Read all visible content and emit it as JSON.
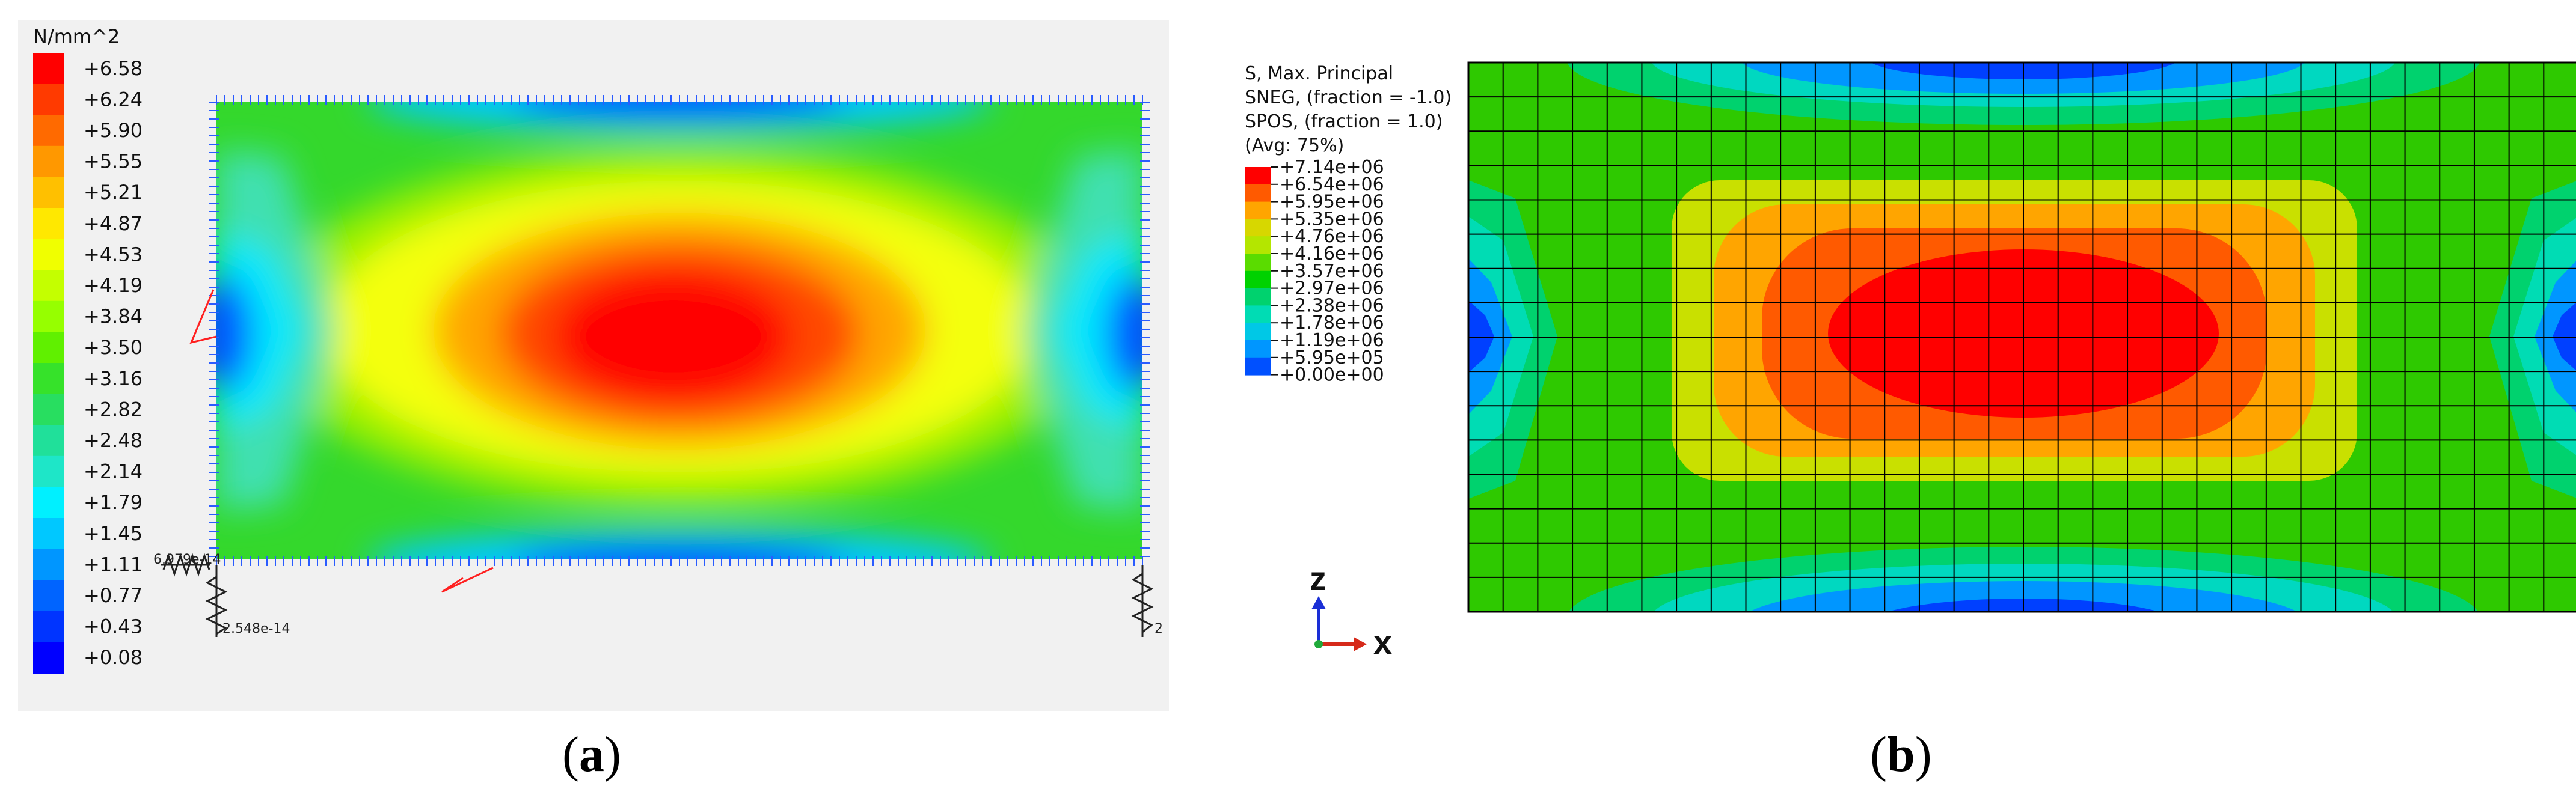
{
  "panel_a": {
    "unit_label": "N/mm^2",
    "scale_values": [
      "+6.58",
      "+6.24",
      "+5.90",
      "+5.55",
      "+5.21",
      "+4.87",
      "+4.53",
      "+4.19",
      "+3.84",
      "+3.50",
      "+3.16",
      "+2.82",
      "+2.48",
      "+2.14",
      "+1.79",
      "+1.45",
      "+1.11",
      "+0.77",
      "+0.43",
      "+0.08"
    ],
    "scale_colors": [
      "#ff0000",
      "#ff3a00",
      "#ff6a00",
      "#ff9800",
      "#ffc000",
      "#ffe800",
      "#f0ff00",
      "#c4ff00",
      "#96ff00",
      "#60f000",
      "#36e22a",
      "#28de60",
      "#20e09a",
      "#1ee6c8",
      "#00f0ff",
      "#00c8ff",
      "#0096ff",
      "#0064ff",
      "#0034ff",
      "#0000ff"
    ],
    "node_label_left": "6.979e-14",
    "node_label_bottom": "2.548e-14",
    "node_label_right": "2"
  },
  "panel_b": {
    "legend_title": [
      "S, Max. Principal",
      "SNEG, (fraction = -1.0)",
      "SPOS, (fraction = 1.0)",
      "(Avg: 75%)"
    ],
    "scale_values": [
      "+7.14e+06",
      "+6.54e+06",
      "+5.95e+06",
      "+5.35e+06",
      "+4.76e+06",
      "+4.16e+06",
      "+3.57e+06",
      "+2.97e+06",
      "+2.38e+06",
      "+1.78e+06",
      "+1.19e+06",
      "+5.95e+05",
      "+0.00e+00"
    ],
    "scale_colors": [
      "#ff0000",
      "#ff5a00",
      "#ffa500",
      "#d7d700",
      "#b4e600",
      "#5adc00",
      "#00d200",
      "#00d26e",
      "#00dcb4",
      "#00c8e6",
      "#0096ff",
      "#0050ff",
      "#0000ff"
    ],
    "axis_z": "z",
    "axis_x": "x"
  },
  "captions": {
    "a_open": "(",
    "a_letter": "a",
    "a_close": ")",
    "b_open": "(",
    "b_letter": "b",
    "b_close": ")"
  }
}
